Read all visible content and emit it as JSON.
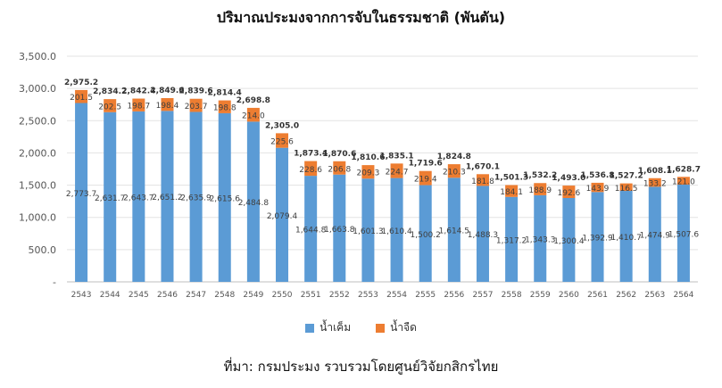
{
  "chart_data": {
    "type": "bar",
    "stacked": true,
    "title": "ปริมาณประมงจากการจับในธรรมชาติ (พันตัน)",
    "xlabel": "",
    "ylabel": "",
    "ylim": [
      0,
      3500
    ],
    "yticks": [
      "-",
      "500.0",
      "1,000.0",
      "1,500.0",
      "2,000.0",
      "2,500.0",
      "3,000.0",
      "3,500.0"
    ],
    "grid": true,
    "legend_position": "bottom",
    "categories": [
      "2543",
      "2544",
      "2545",
      "2546",
      "2547",
      "2548",
      "2549",
      "2550",
      "2551",
      "2552",
      "2553",
      "2554",
      "2555",
      "2556",
      "2557",
      "2558",
      "2559",
      "2560",
      "2561",
      "2562",
      "2563",
      "2564"
    ],
    "series": [
      {
        "name": "น้ำเค็ม",
        "color": "#5b9bd5",
        "values": [
          2773.7,
          2631.7,
          2643.7,
          2651.2,
          2635.9,
          2615.6,
          2484.8,
          2079.4,
          1644.8,
          1663.8,
          1601.3,
          1610.4,
          1500.2,
          1614.5,
          1488.3,
          1317.2,
          1343.3,
          1300.4,
          1392.9,
          1410.7,
          1474.9,
          1507.6
        ],
        "labels": [
          "2,773.7",
          "2,631.7",
          "2,643.7",
          "2,651.2",
          "2,635.9",
          "2,615.6",
          "2,484.8",
          "2,079.4",
          "1,644.8",
          "1,663.8",
          "1,601.3",
          "1,610.4",
          "1,500.2",
          "1,614.5",
          "1,488.3",
          "1,317.2",
          "1,343.3",
          "1,300.4",
          "1,392.9",
          "1,410.7",
          "1,474.9",
          "1,507.6"
        ]
      },
      {
        "name": "น้ำจืด",
        "color": "#ed7d31",
        "values": [
          201.5,
          202.5,
          198.7,
          198.4,
          203.7,
          198.8,
          214.0,
          225.6,
          228.6,
          206.8,
          209.3,
          224.7,
          219.4,
          210.3,
          181.8,
          184.1,
          188.9,
          192.6,
          143.9,
          116.5,
          133.2,
          121.0
        ],
        "labels": [
          "201.5",
          "202.5",
          "198.7",
          "198.4",
          "203.7",
          "198.8",
          "214.0",
          "225.6",
          "228.6",
          "206.8",
          "209.3",
          "224.7",
          "219.4",
          "210.3",
          "181.8",
          "184.1",
          "188.9",
          "192.6",
          "143.9",
          "116.5",
          "133.2",
          "121.0"
        ]
      }
    ],
    "totals": [
      2975.2,
      2834.2,
      2842.4,
      2849.6,
      2839.6,
      2814.4,
      2698.8,
      2305.0,
      1873.4,
      1870.6,
      1810.6,
      1835.1,
      1719.6,
      1824.8,
      1670.1,
      1501.3,
      1532.2,
      1493.0,
      1536.8,
      1527.2,
      1608.1,
      1628.7
    ],
    "total_labels": [
      "2,975.2",
      "2,834.2",
      "2,842.4",
      "2,849.6",
      "2,839.6",
      "2,814.4",
      "2,698.8",
      "2,305.0",
      "1,873.4",
      "1,870.6",
      "1,810.6",
      "1,835.1",
      "1,719.6",
      "1,824.8",
      "1,670.1",
      "1,501.3",
      "1,532.2",
      "1,493.0",
      "1,536.8",
      "1,527.2",
      "1,608.1",
      "1,628.7"
    ]
  },
  "source": "ที่มา: กรมประมง รวบรวมโดยศูนย์วิจัยกสิกรไทย"
}
